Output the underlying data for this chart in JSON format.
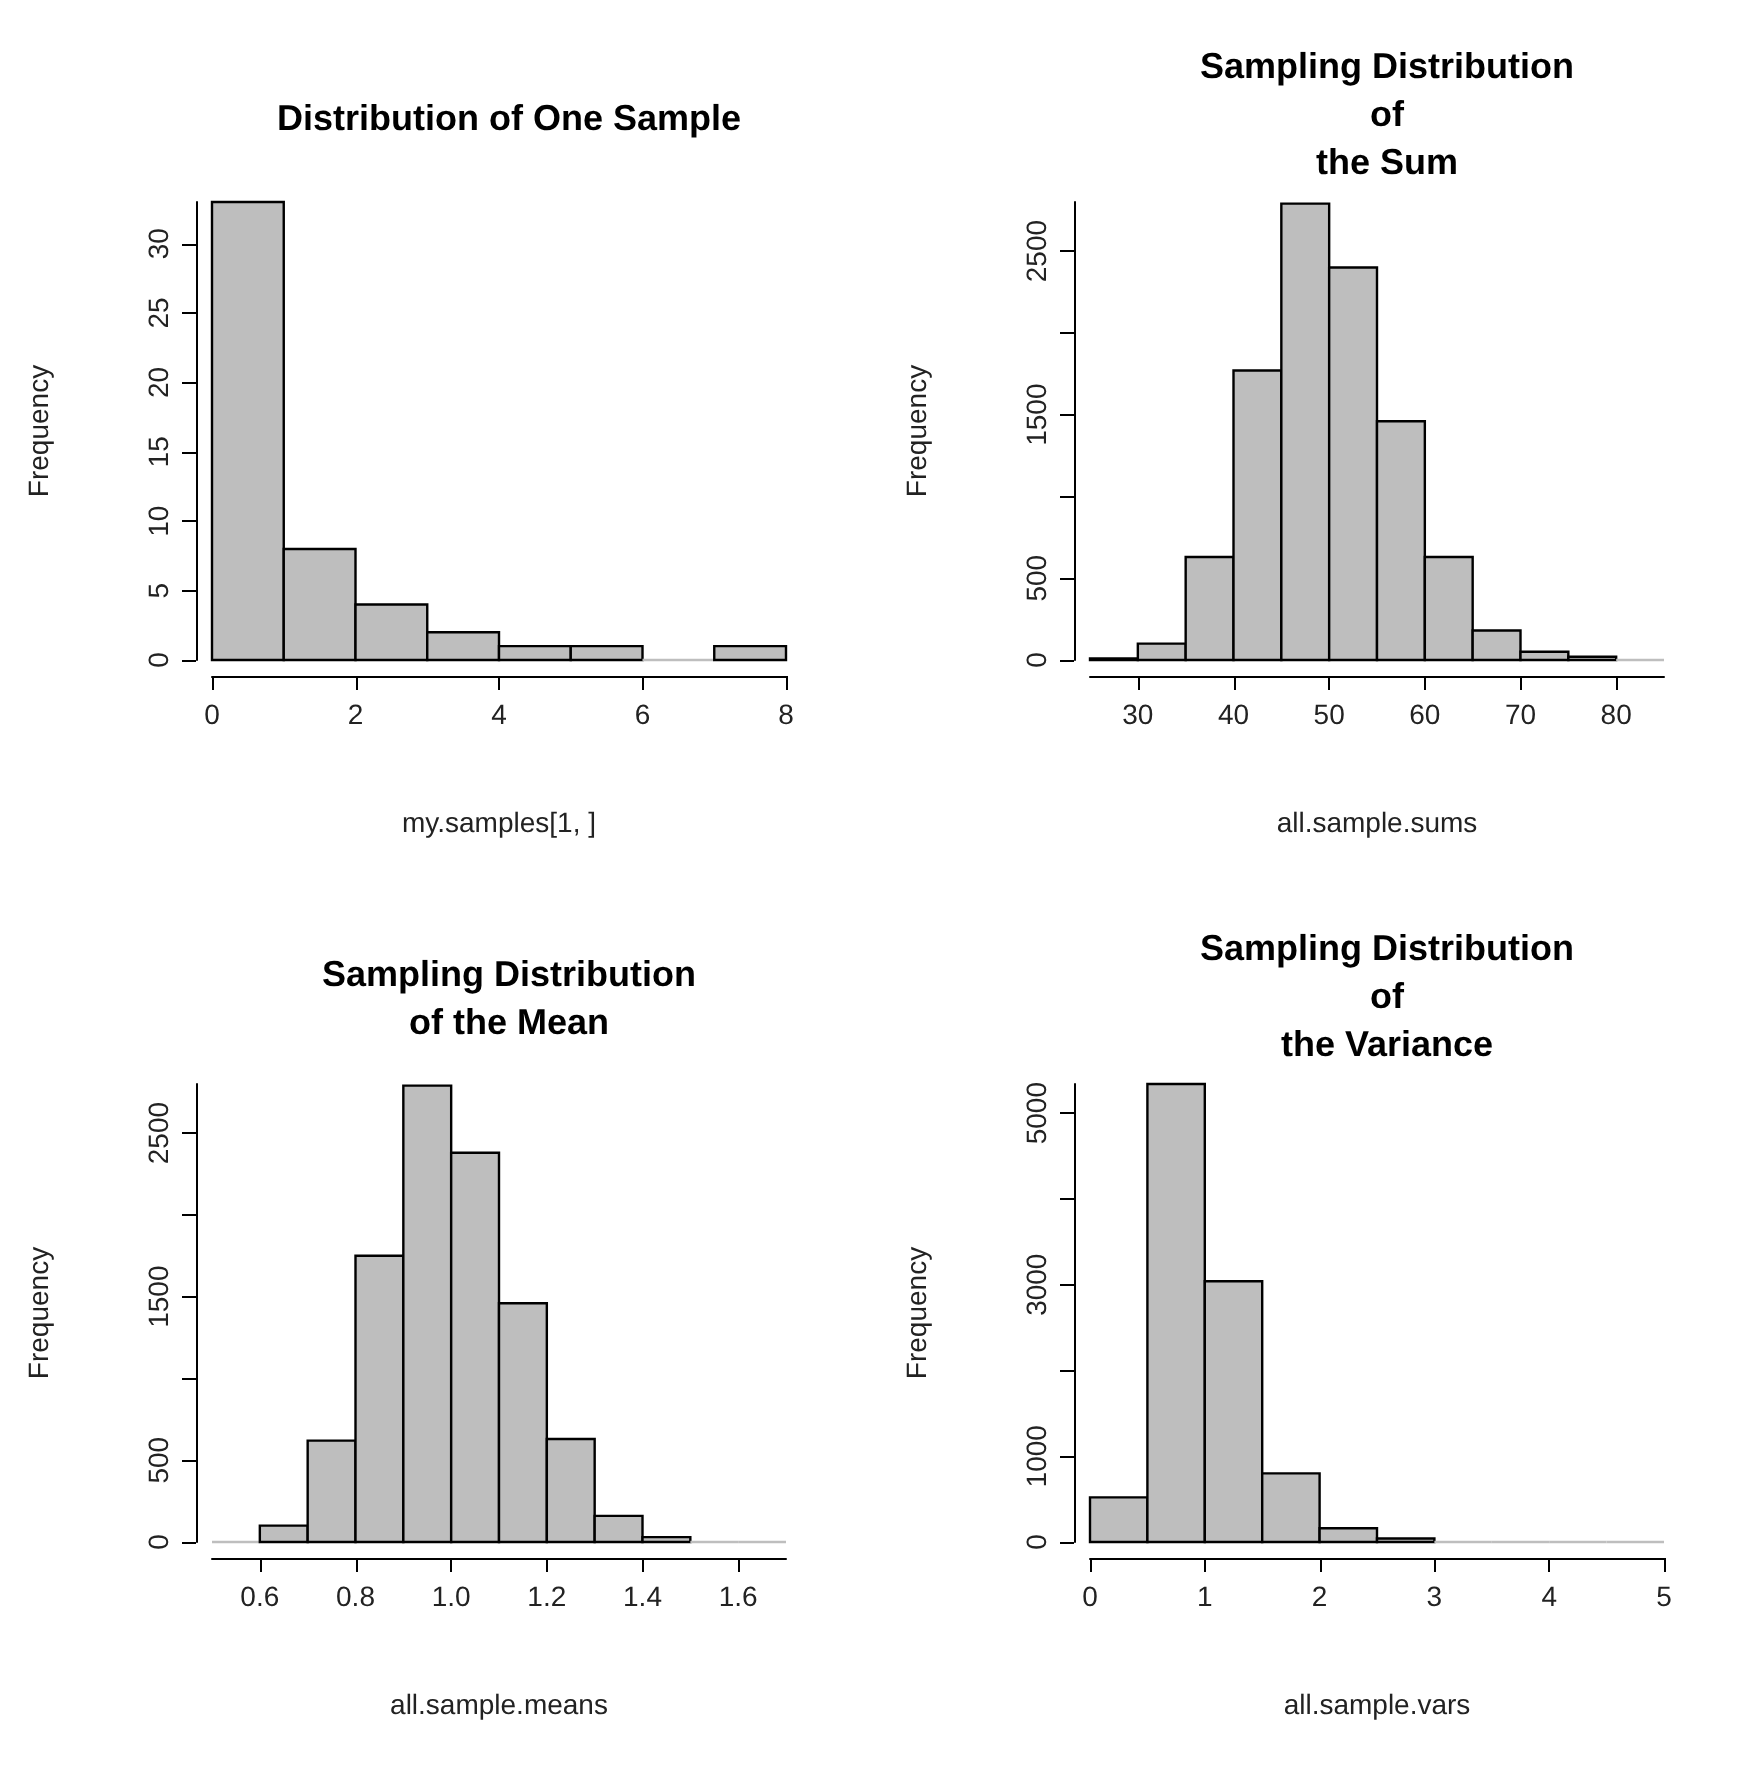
{
  "chart_data": [
    {
      "type": "histogram",
      "title": "Distribution of One Sample",
      "xlabel": "my.samples[1, ]",
      "ylabel": "Frequency",
      "color": "#bebebe",
      "bins": [
        0,
        1,
        2,
        3,
        4,
        5,
        6,
        7,
        8
      ],
      "values": [
        33,
        8,
        4,
        2,
        1,
        1,
        0,
        1
      ],
      "xlim": [
        0,
        8
      ],
      "xticks": [
        0,
        2,
        4,
        6,
        8
      ],
      "ylim": [
        0,
        33
      ],
      "yticks": [
        0,
        5,
        10,
        15,
        20,
        25,
        30
      ]
    },
    {
      "type": "histogram",
      "title": "Sampling Distribution\nof\nthe Sum",
      "xlabel": "all.sample.sums",
      "ylabel": "Frequency",
      "color": "#bebebe",
      "bins": [
        25,
        30,
        35,
        40,
        45,
        50,
        55,
        60,
        65,
        70,
        75,
        80,
        85
      ],
      "values": [
        10,
        100,
        630,
        1770,
        2790,
        2400,
        1460,
        630,
        180,
        50,
        20,
        0
      ],
      "xlim": [
        25,
        85
      ],
      "xticks": [
        30,
        40,
        50,
        60,
        70,
        80
      ],
      "ylim": [
        0,
        2800
      ],
      "yticks": [
        0,
        500,
        {
          "value": 1000,
          "label": null
        },
        1500,
        {
          "value": 2000,
          "label": null
        },
        2500
      ]
    },
    {
      "type": "histogram",
      "title": "Sampling Distribution\nof the Mean",
      "xlabel": "all.sample.means",
      "ylabel": "Frequency",
      "color": "#bebebe",
      "bins": [
        0.5,
        0.6,
        0.7,
        0.8,
        0.9,
        1.0,
        1.1,
        1.2,
        1.3,
        1.4,
        1.5,
        1.6,
        1.7
      ],
      "values": [
        0,
        100,
        620,
        1750,
        2790,
        2380,
        1460,
        630,
        160,
        30,
        0,
        0
      ],
      "xlim": [
        0.5,
        1.7
      ],
      "xticks": [
        {
          "value": 0.6,
          "label": "0.6"
        },
        {
          "value": 0.8,
          "label": "0.8"
        },
        {
          "value": 1.0,
          "label": "1.0"
        },
        {
          "value": 1.2,
          "label": "1.2"
        },
        {
          "value": 1.4,
          "label": "1.4"
        },
        {
          "value": 1.6,
          "label": "1.6"
        }
      ],
      "ylim": [
        0,
        2800
      ],
      "yticks": [
        0,
        500,
        {
          "value": 1000,
          "label": null
        },
        1500,
        {
          "value": 2000,
          "label": null
        },
        2500
      ]
    },
    {
      "type": "histogram",
      "title": "Sampling Distribution\nof\nthe Variance",
      "xlabel": "all.sample.vars",
      "ylabel": "Frequency",
      "color": "#bebebe",
      "bins": [
        0,
        0.5,
        1,
        1.5,
        2,
        2.5,
        3,
        3.5,
        4,
        4.5,
        5
      ],
      "values": [
        520,
        5340,
        3040,
        800,
        160,
        40,
        0,
        0,
        0,
        0
      ],
      "xlim": [
        0,
        5
      ],
      "xticks": [
        0,
        1,
        2,
        3,
        4,
        5
      ],
      "ylim": [
        0,
        5340
      ],
      "yticks": [
        0,
        1000,
        {
          "value": 2000,
          "label": null
        },
        3000,
        {
          "value": 4000,
          "label": null
        },
        5000
      ]
    }
  ]
}
